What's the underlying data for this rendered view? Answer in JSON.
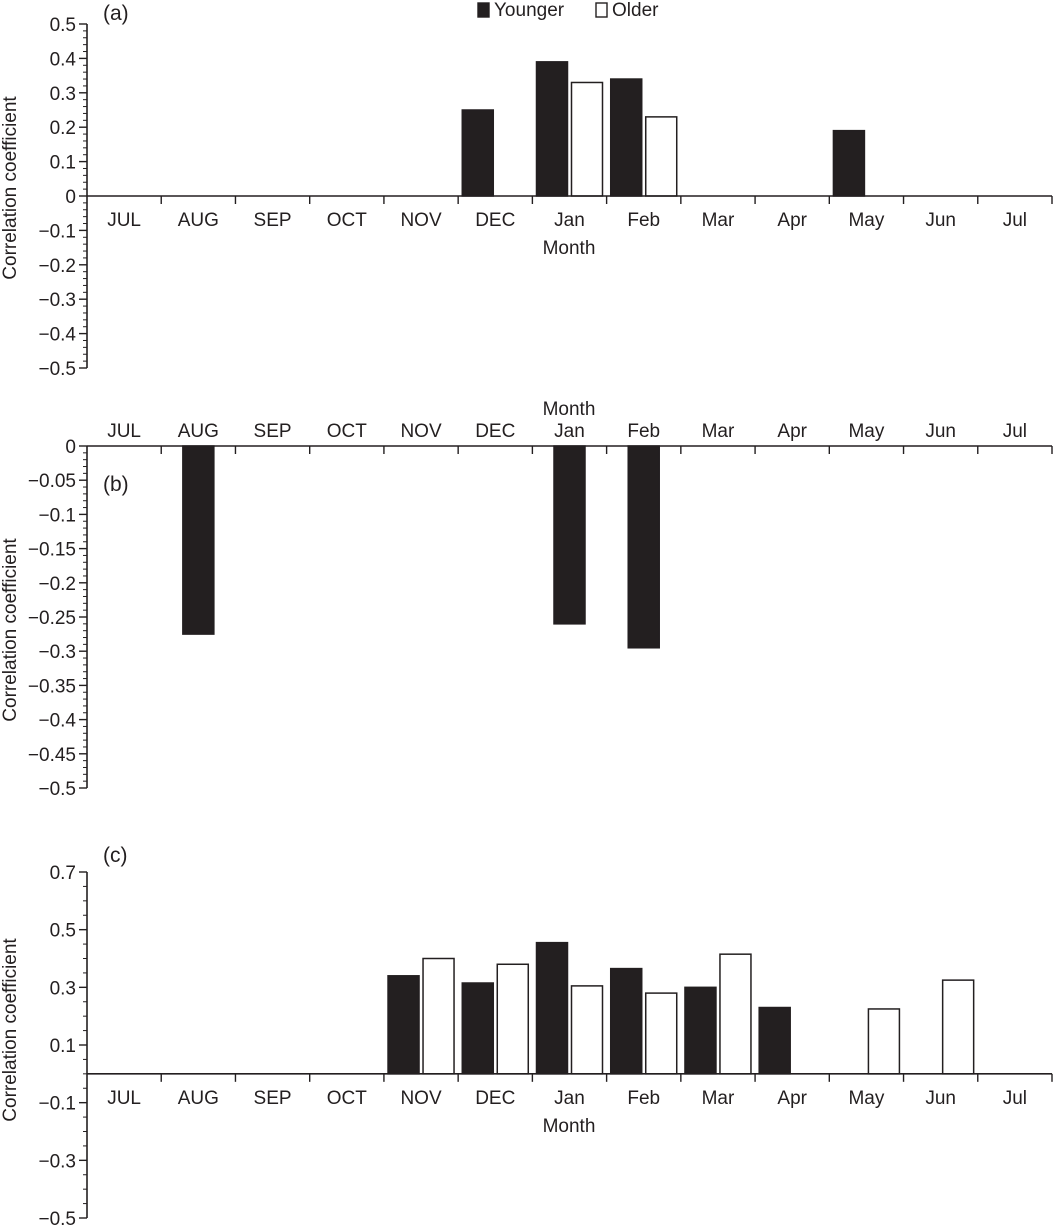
{
  "legend": [
    {
      "label": "Younger",
      "color": "#231f20"
    },
    {
      "label": "Older",
      "color": "#ffffff"
    }
  ],
  "chart_data": [
    {
      "type": "bar",
      "panel_label": "(a)",
      "ylabel": "Correlation coefficient",
      "xlabel": "Month",
      "xlabel_position": "below",
      "x_tick_labels_position": "below-zero-line",
      "categories": [
        "JUL",
        "AUG",
        "SEP",
        "OCT",
        "NOV",
        "DEC",
        "Jan",
        "Feb",
        "Mar",
        "Apr",
        "May",
        "Jun",
        "Jul"
      ],
      "ylim": [
        -0.5,
        0.5
      ],
      "yticks": [
        0.5,
        0.4,
        0.3,
        0.2,
        0.1,
        0,
        -0.1,
        -0.2,
        -0.3,
        -0.4,
        -0.5
      ],
      "ytick_labels": [
        "0.5",
        "0.4",
        "0.3",
        "0.2",
        "0.1",
        "0",
        "−0.1",
        "−0.2",
        "−0.3",
        "−0.4",
        "−0.5"
      ],
      "series": [
        {
          "name": "Younger",
          "color": "#231f20",
          "values": [
            null,
            null,
            null,
            null,
            null,
            0.25,
            0.39,
            0.34,
            null,
            null,
            0.19,
            null,
            null
          ]
        },
        {
          "name": "Older",
          "color": "#ffffff",
          "values": [
            null,
            null,
            null,
            null,
            null,
            null,
            0.33,
            0.23,
            null,
            null,
            null,
            null,
            null
          ]
        }
      ]
    },
    {
      "type": "bar",
      "panel_label": "(b)",
      "ylabel": "Correlation coefficient",
      "xlabel": "Month",
      "xlabel_position": "above",
      "x_tick_labels_position": "above-zero-line",
      "categories": [
        "JUL",
        "AUG",
        "SEP",
        "OCT",
        "NOV",
        "DEC",
        "Jan",
        "Feb",
        "Mar",
        "Apr",
        "May",
        "Jun",
        "Jul"
      ],
      "ylim": [
        -0.5,
        0
      ],
      "yticks": [
        0,
        -0.05,
        -0.1,
        -0.15,
        -0.2,
        -0.25,
        -0.3,
        -0.35,
        -0.4,
        -0.45,
        -0.5
      ],
      "ytick_labels": [
        "0",
        "−0.05",
        "−0.1",
        "−0.15",
        "−0.2",
        "−0.25",
        "−0.3",
        "−0.35",
        "−0.4",
        "−0.45",
        "−0.5"
      ],
      "series": [
        {
          "name": "Younger",
          "color": "#231f20",
          "values": [
            null,
            -0.275,
            null,
            null,
            null,
            null,
            -0.26,
            -0.295,
            null,
            null,
            null,
            null,
            null
          ]
        }
      ]
    },
    {
      "type": "bar",
      "panel_label": "(c)",
      "ylabel": "Correlation coefficient",
      "xlabel": "Month",
      "xlabel_position": "below",
      "x_tick_labels_position": "below-zero-line",
      "categories": [
        "JUL",
        "AUG",
        "SEP",
        "OCT",
        "NOV",
        "DEC",
        "Jan",
        "Feb",
        "Mar",
        "Apr",
        "May",
        "Jun",
        "Jul"
      ],
      "ylim": [
        -0.5,
        0.7
      ],
      "yticks": [
        0.7,
        0.5,
        0.3,
        0.1,
        -0.1,
        -0.3,
        -0.5
      ],
      "ytick_labels": [
        "0.7",
        "0.5",
        "0.3",
        "0.1",
        "−0.1",
        "−0.3",
        "−0.5"
      ],
      "series": [
        {
          "name": "Younger",
          "color": "#231f20",
          "values": [
            null,
            null,
            null,
            null,
            0.34,
            0.315,
            0.455,
            0.365,
            0.3,
            0.23,
            null,
            null,
            null
          ]
        },
        {
          "name": "Older",
          "color": "#ffffff",
          "values": [
            null,
            null,
            null,
            null,
            0.4,
            0.38,
            0.305,
            0.28,
            0.415,
            null,
            0.225,
            0.325,
            null
          ]
        }
      ]
    }
  ]
}
